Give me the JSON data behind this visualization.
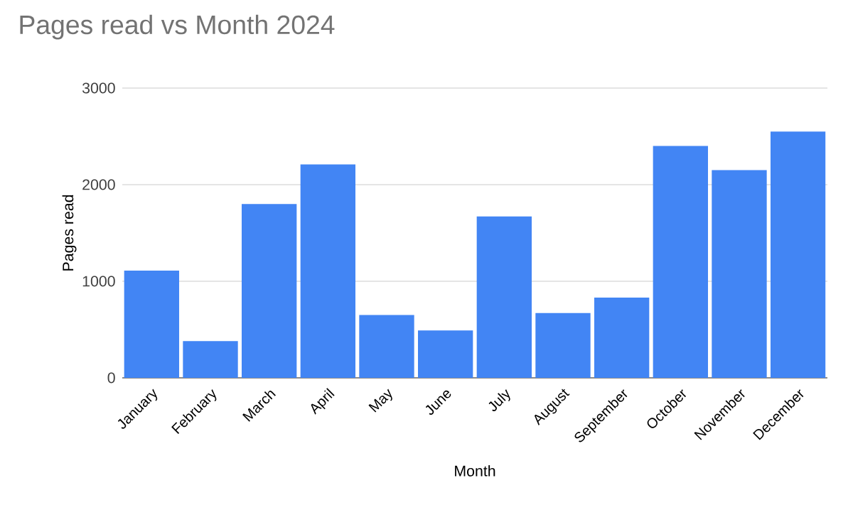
{
  "chart_data": {
    "type": "bar",
    "title": "Pages read vs Month 2024",
    "xlabel": "Month",
    "ylabel": "Pages read",
    "categories": [
      "January",
      "February",
      "March",
      "April",
      "May",
      "June",
      "July",
      "August",
      "September",
      "October",
      "November",
      "December"
    ],
    "values": [
      1110,
      380,
      1800,
      2210,
      650,
      490,
      1670,
      670,
      830,
      2400,
      2150,
      2550
    ],
    "color": "#4285f4",
    "ylim": [
      0,
      3000
    ],
    "yticks": [
      0,
      1000,
      2000,
      3000
    ],
    "grid": "y"
  }
}
